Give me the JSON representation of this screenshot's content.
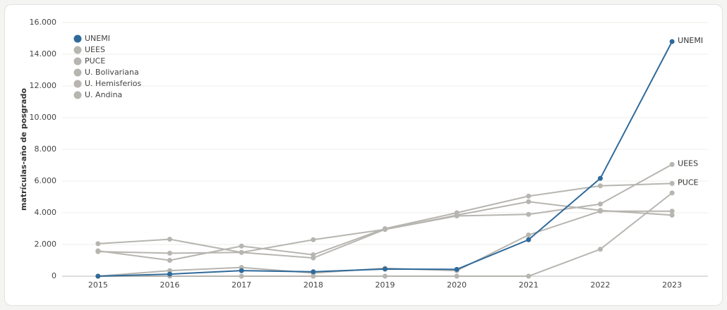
{
  "chart_data": {
    "type": "line",
    "y_label": "matrículas-año de posgrado",
    "categories": [
      "2015",
      "2016",
      "2017",
      "2018",
      "2019",
      "2020",
      "2021",
      "2022",
      "2023"
    ],
    "series": [
      {
        "name": "UNEMI",
        "color": "#2f6a9a",
        "end_label": true,
        "values": [
          0,
          130,
          350,
          280,
          450,
          430,
          2300,
          6170,
          14800
        ]
      },
      {
        "name": "UEES",
        "color": "#b7b5b0",
        "end_label": true,
        "values": [
          1550,
          1450,
          1500,
          1150,
          2950,
          3800,
          3900,
          4550,
          7050
        ]
      },
      {
        "name": "PUCE",
        "color": "#b7b5b0",
        "end_label": true,
        "values": [
          1600,
          1000,
          1900,
          1350,
          3000,
          4000,
          5050,
          5700,
          5850
        ]
      },
      {
        "name": "U. Bolivariana",
        "color": "#b7b5b0",
        "end_label": false,
        "values": [
          2050,
          2330,
          1500,
          2300,
          2950,
          3850,
          4700,
          4150,
          3850
        ]
      },
      {
        "name": "U. Hemisferios",
        "color": "#b7b5b0",
        "end_label": false,
        "values": [
          0,
          350,
          550,
          200,
          500,
          350,
          2600,
          4100,
          4100
        ]
      },
      {
        "name": "U. Andina",
        "color": "#b7b5b0",
        "end_label": false,
        "values": [
          0,
          0,
          0,
          0,
          0,
          0,
          0,
          1700,
          5250
        ]
      }
    ],
    "ylim": [
      0,
      16000
    ],
    "yticks": [
      0,
      {
        "value": 2000,
        "label": "2.000"
      },
      {
        "value": 4000,
        "label": "4.000"
      },
      {
        "value": 6000,
        "label": "6.000"
      },
      {
        "value": 8000,
        "label": "8.000"
      },
      {
        "value": 10000,
        "label": "10.000"
      },
      {
        "value": 12000,
        "label": "12.000"
      },
      {
        "value": 14000,
        "label": "14.000"
      },
      {
        "value": 16000,
        "label": "16.000"
      }
    ],
    "grid": true,
    "legend": "top-left"
  }
}
